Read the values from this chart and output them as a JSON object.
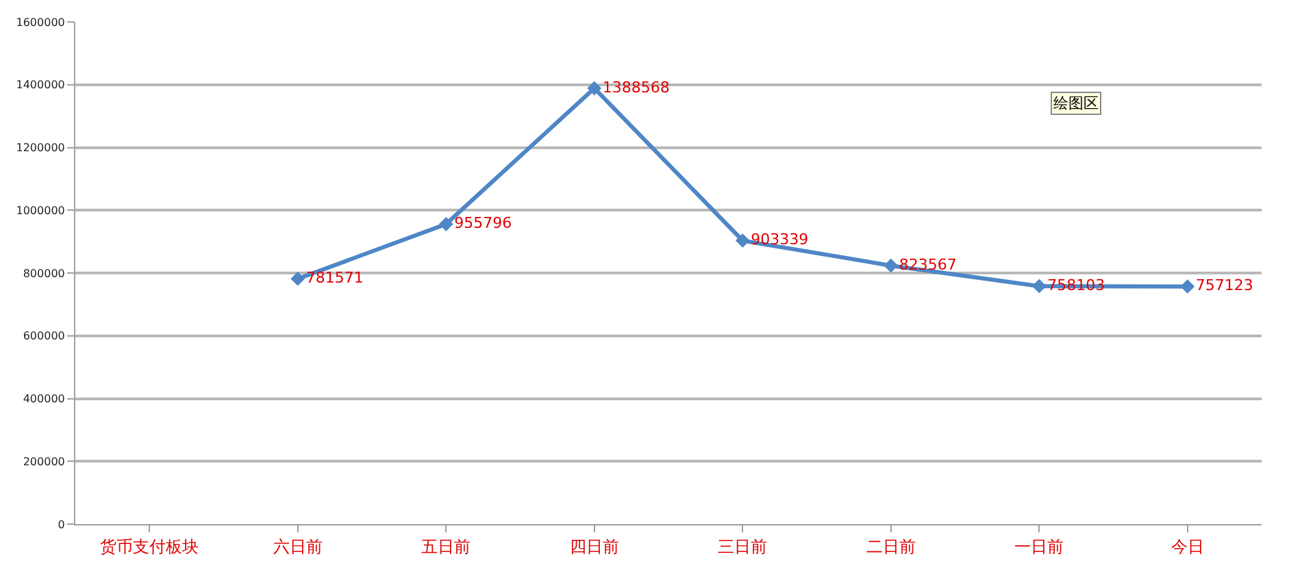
{
  "chart_data": {
    "type": "line",
    "categories": [
      "货币支付板块",
      "六日前",
      "五日前",
      "四日前",
      "三日前",
      "二日前",
      "一日前",
      "今日"
    ],
    "series": [
      {
        "color": "#4f86c6",
        "values": [
          null,
          781571,
          955796,
          1388568,
          903339,
          823567,
          758103,
          757123
        ]
      }
    ],
    "ylim": [
      0,
      1600000
    ],
    "yticks": [
      0,
      200000,
      400000,
      600000,
      800000,
      1000000,
      1200000,
      1400000,
      1600000
    ],
    "grid": "y",
    "marker": "diamond",
    "line_style": "solid",
    "data_labels": true,
    "legend": false,
    "annotations": [
      "绘图区"
    ]
  }
}
